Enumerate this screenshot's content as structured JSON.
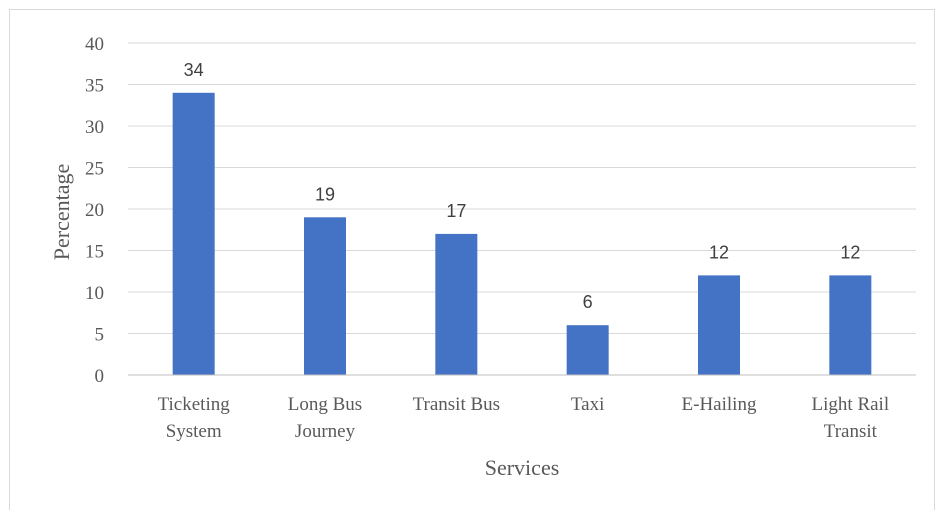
{
  "chart_data": {
    "type": "bar",
    "categories": [
      [
        "Ticketing",
        "System"
      ],
      [
        "Long Bus",
        "Journey"
      ],
      [
        "Transit Bus"
      ],
      [
        "Taxi"
      ],
      [
        "E-Hailing"
      ],
      [
        "Light Rail",
        "Transit"
      ]
    ],
    "values": [
      34,
      19,
      17,
      6,
      12,
      12
    ],
    "title": "",
    "xlabel": "Services",
    "ylabel": "Percentage",
    "ylim": [
      0,
      40
    ],
    "yticks": [
      0,
      5,
      10,
      15,
      20,
      25,
      30,
      35,
      40
    ],
    "grid": true,
    "legend": "none",
    "data_labels": true,
    "colors": {
      "bar": "#4472c4",
      "grid": "#d9d9d9",
      "axis": "#bfbfbf"
    }
  }
}
